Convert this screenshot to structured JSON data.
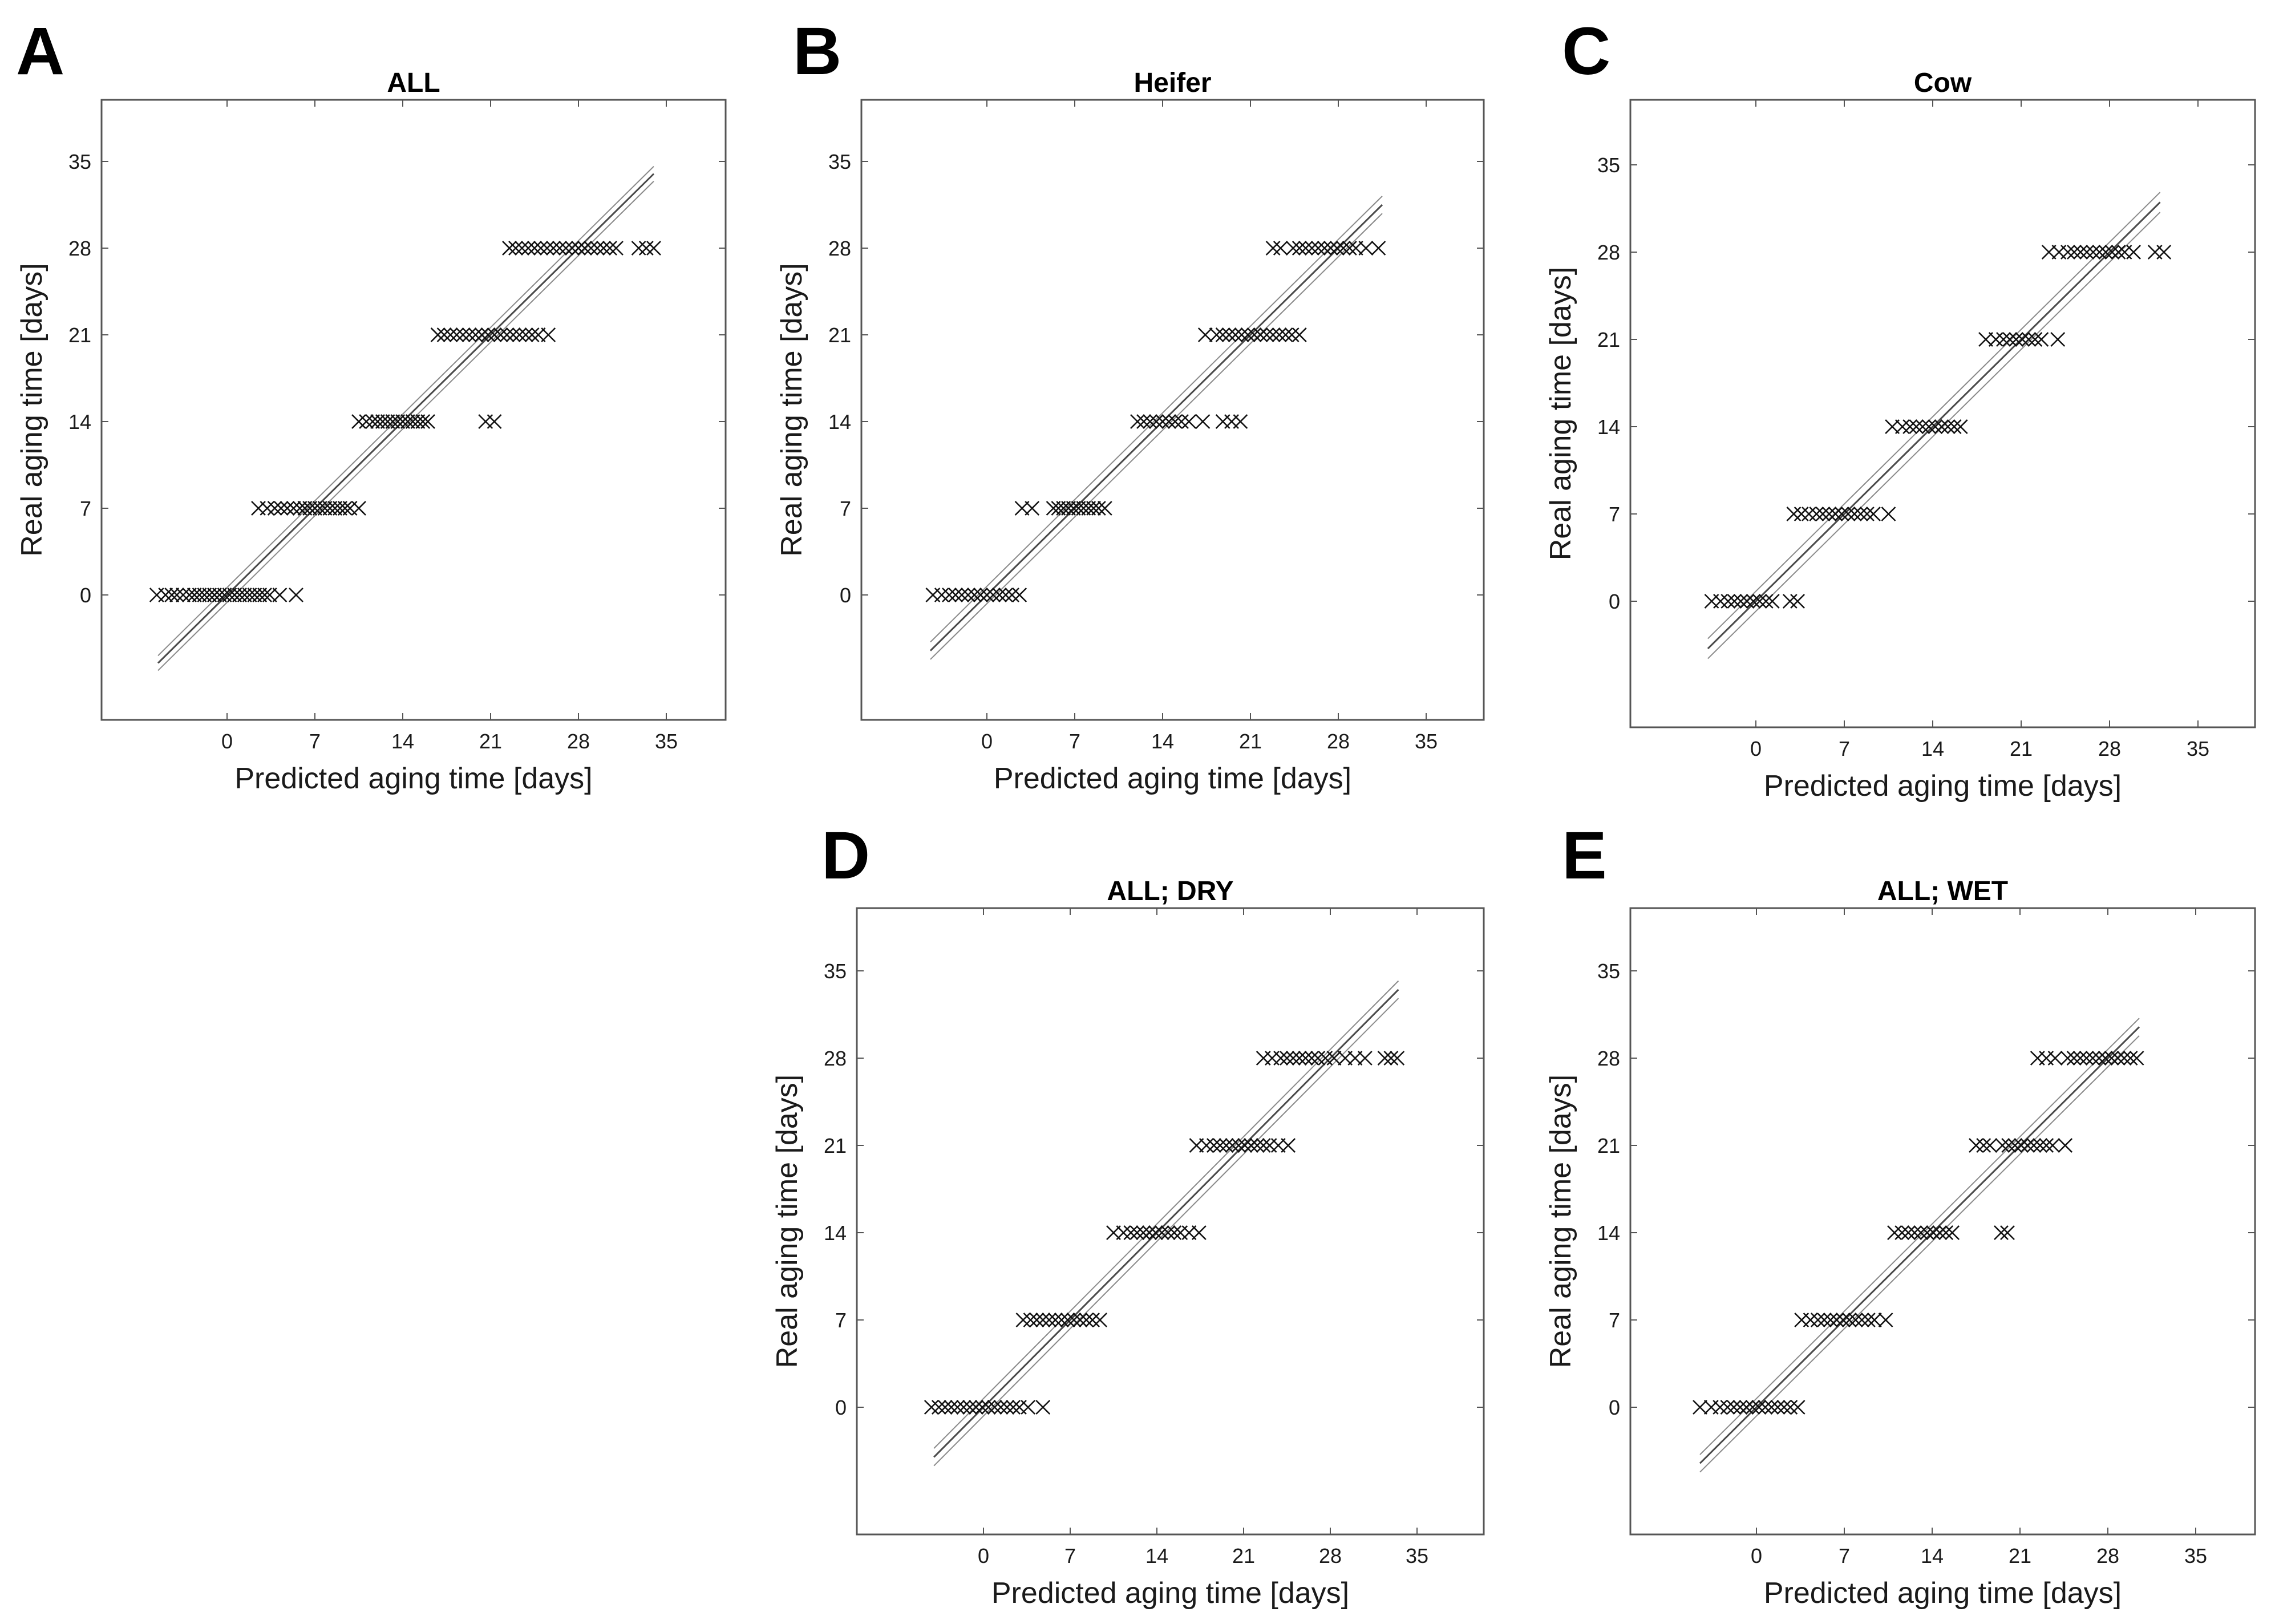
{
  "figure": {
    "xlabel": "Predicted aging time [days]",
    "ylabel": "Real aging time [days]",
    "tick_values": [
      0,
      7,
      14,
      21,
      28,
      35
    ],
    "tick_labels": [
      "0",
      "7",
      "14",
      "21",
      "28",
      "35"
    ]
  },
  "chart_data": [
    {
      "type": "scatter",
      "panel": "A",
      "title": "ALL",
      "xlabel": "Predicted aging time [days]",
      "ylabel": "Real aging time [days]",
      "xlim": [
        -10,
        40
      ],
      "ylim": [
        -10,
        40
      ],
      "fit": {
        "x": [
          -5.5,
          34
        ],
        "y": [
          -5.5,
          34
        ],
        "ci_halfwidth": 0.6
      },
      "series": [
        {
          "real": 0,
          "predicted": [
            -5.6,
            -4.9,
            -4.4,
            -4.0,
            -3.5,
            -3.0,
            -2.6,
            -2.2,
            -1.8,
            -1.4,
            -1.0,
            -0.6,
            -0.2,
            0.2,
            0.6,
            1.0,
            1.4,
            1.8,
            2.2,
            2.6,
            3.0,
            3.4,
            4.2,
            5.5
          ]
        },
        {
          "real": 7,
          "predicted": [
            2.5,
            3.2,
            3.8,
            4.3,
            4.8,
            5.3,
            5.8,
            6.2,
            6.6,
            7.0,
            7.4,
            7.8,
            8.2,
            8.6,
            9.0,
            9.4,
            9.8,
            10.5
          ]
        },
        {
          "real": 14,
          "predicted": [
            10.5,
            11.1,
            11.6,
            12.0,
            12.4,
            12.8,
            13.2,
            13.6,
            14.0,
            14.4,
            14.8,
            15.2,
            15.6,
            16.0,
            20.6,
            21.3
          ]
        },
        {
          "real": 21,
          "predicted": [
            16.8,
            17.3,
            17.8,
            18.3,
            18.8,
            19.3,
            19.8,
            20.3,
            20.8,
            21.3,
            21.8,
            22.3,
            22.8,
            23.3,
            23.8,
            24.3,
            24.8,
            25.6
          ]
        },
        {
          "real": 28,
          "predicted": [
            22.5,
            23.0,
            23.5,
            24.0,
            24.5,
            25.0,
            25.5,
            26.0,
            26.5,
            27.0,
            27.5,
            28.0,
            28.5,
            29.0,
            29.5,
            30.0,
            30.5,
            31.0,
            32.8,
            33.4,
            34.0
          ]
        }
      ]
    },
    {
      "type": "scatter",
      "panel": "B",
      "title": "Heifer",
      "xlabel": "Predicted aging time [days]",
      "ylabel": "Real aging time [days]",
      "xlim": [
        -10,
        40
      ],
      "ylim": [
        -10,
        40
      ],
      "fit": {
        "x": [
          -4.5,
          31.5
        ],
        "y": [
          -4.5,
          31.5
        ],
        "ci_halfwidth": 0.7
      },
      "series": [
        {
          "real": 0,
          "predicted": [
            -4.3,
            -3.6,
            -3.0,
            -2.5,
            -2.0,
            -1.5,
            -1.0,
            -0.5,
            0.0,
            0.5,
            1.0,
            1.5,
            2.0,
            2.6
          ]
        },
        {
          "real": 7,
          "predicted": [
            2.8,
            3.6,
            5.3,
            5.7,
            6.1,
            6.5,
            6.9,
            7.3,
            7.7,
            8.1,
            8.5,
            8.9,
            9.4
          ]
        },
        {
          "real": 14,
          "predicted": [
            12.0,
            12.5,
            13.0,
            13.5,
            14.0,
            14.5,
            15.0,
            15.5,
            16.1,
            17.2,
            18.8,
            19.5,
            20.2
          ]
        },
        {
          "real": 21,
          "predicted": [
            17.4,
            18.3,
            18.8,
            19.3,
            19.8,
            20.3,
            20.8,
            21.3,
            21.8,
            22.3,
            22.8,
            23.3,
            23.8,
            24.3,
            24.9
          ]
        },
        {
          "real": 28,
          "predicted": [
            22.8,
            23.4,
            24.4,
            24.9,
            25.4,
            25.9,
            26.4,
            26.9,
            27.4,
            27.9,
            28.4,
            28.9,
            29.4,
            30.2,
            31.2
          ]
        }
      ]
    },
    {
      "type": "scatter",
      "panel": "C",
      "title": "Cow",
      "xlabel": "Predicted aging time [days]",
      "ylabel": "Real aging time [days]",
      "xlim": [
        -10,
        40
      ],
      "ylim": [
        -10,
        40
      ],
      "fit": {
        "x": [
          -3.8,
          32
        ],
        "y": [
          -3.8,
          32
        ],
        "ci_halfwidth": 0.8
      },
      "series": [
        {
          "real": 0,
          "predicted": [
            -3.5,
            -2.8,
            -2.2,
            -1.7,
            -1.2,
            -0.7,
            -0.2,
            0.3,
            0.8,
            1.3,
            2.7,
            3.3
          ]
        },
        {
          "real": 7,
          "predicted": [
            3.0,
            3.6,
            4.2,
            4.8,
            5.3,
            5.8,
            6.3,
            6.8,
            7.3,
            7.8,
            8.3,
            8.8,
            9.3,
            10.5
          ]
        },
        {
          "real": 14,
          "predicted": [
            10.8,
            11.6,
            12.2,
            12.7,
            13.2,
            13.7,
            14.2,
            14.7,
            15.2,
            15.7,
            16.2
          ]
        },
        {
          "real": 21,
          "predicted": [
            18.2,
            19.0,
            19.6,
            20.1,
            20.6,
            21.1,
            21.6,
            22.1,
            22.6,
            23.9
          ]
        },
        {
          "real": 28,
          "predicted": [
            23.2,
            24.0,
            24.7,
            25.2,
            25.7,
            26.2,
            26.7,
            27.2,
            27.7,
            28.2,
            28.7,
            29.2,
            29.9,
            31.6,
            32.3
          ]
        }
      ]
    },
    {
      "type": "scatter",
      "panel": "D",
      "title": "ALL; DRY",
      "xlabel": "Predicted aging time [days]",
      "ylabel": "Real aging time [days]",
      "xlim": [
        -10,
        40
      ],
      "ylim": [
        -10,
        40
      ],
      "fit": {
        "x": [
          -4.0,
          33.5
        ],
        "y": [
          -4.0,
          33.5
        ],
        "ci_halfwidth": 0.7
      },
      "series": [
        {
          "real": 0,
          "predicted": [
            -4.2,
            -3.6,
            -3.1,
            -2.6,
            -2.1,
            -1.6,
            -1.1,
            -0.6,
            -0.1,
            0.4,
            0.9,
            1.4,
            1.9,
            2.4,
            2.9,
            3.6,
            4.8
          ]
        },
        {
          "real": 7,
          "predicted": [
            3.2,
            3.8,
            4.3,
            4.8,
            5.3,
            5.8,
            6.3,
            6.8,
            7.3,
            7.8,
            8.3,
            8.8,
            9.4
          ]
        },
        {
          "real": 14,
          "predicted": [
            10.5,
            11.3,
            11.9,
            12.4,
            12.9,
            13.4,
            13.9,
            14.4,
            14.9,
            15.4,
            15.9,
            16.6,
            17.4
          ]
        },
        {
          "real": 21,
          "predicted": [
            17.2,
            18.0,
            18.6,
            19.1,
            19.6,
            20.1,
            20.6,
            21.1,
            21.6,
            22.1,
            22.6,
            23.1,
            23.8,
            24.6
          ]
        },
        {
          "real": 28,
          "predicted": [
            22.6,
            23.3,
            24.0,
            24.5,
            25.0,
            25.5,
            26.0,
            26.5,
            27.0,
            27.6,
            28.3,
            29.2,
            30.0,
            30.8,
            32.4,
            32.9,
            33.4
          ]
        }
      ]
    },
    {
      "type": "scatter",
      "panel": "E",
      "title": "ALL; WET",
      "xlabel": "Predicted aging time [days]",
      "ylabel": "Real aging time [days]",
      "xlim": [
        -10,
        40
      ],
      "ylim": [
        -10,
        40
      ],
      "fit": {
        "x": [
          -4.5,
          30.5
        ],
        "y": [
          -4.5,
          30.5
        ],
        "ci_halfwidth": 0.7
      },
      "series": [
        {
          "real": 0,
          "predicted": [
            -4.5,
            -3.6,
            -2.9,
            -2.3,
            -1.8,
            -1.3,
            -0.8,
            -0.3,
            0.2,
            0.7,
            1.2,
            1.7,
            2.2,
            2.7,
            3.3
          ]
        },
        {
          "real": 7,
          "predicted": [
            3.6,
            4.3,
            4.9,
            5.4,
            5.9,
            6.4,
            6.9,
            7.4,
            7.9,
            8.4,
            8.9,
            9.4,
            10.3
          ]
        },
        {
          "real": 14,
          "predicted": [
            11.0,
            11.6,
            12.1,
            12.6,
            13.1,
            13.6,
            14.1,
            14.6,
            15.1,
            15.6,
            19.5,
            20.0
          ]
        },
        {
          "real": 21,
          "predicted": [
            17.5,
            18.1,
            18.6,
            19.6,
            20.1,
            20.6,
            21.1,
            21.6,
            22.1,
            22.6,
            23.1,
            23.6,
            24.6
          ]
        },
        {
          "real": 28,
          "predicted": [
            22.4,
            23.1,
            23.8,
            24.8,
            25.3,
            25.8,
            26.3,
            26.8,
            27.3,
            27.8,
            28.3,
            28.8,
            29.3,
            29.8,
            30.3
          ]
        }
      ]
    }
  ]
}
